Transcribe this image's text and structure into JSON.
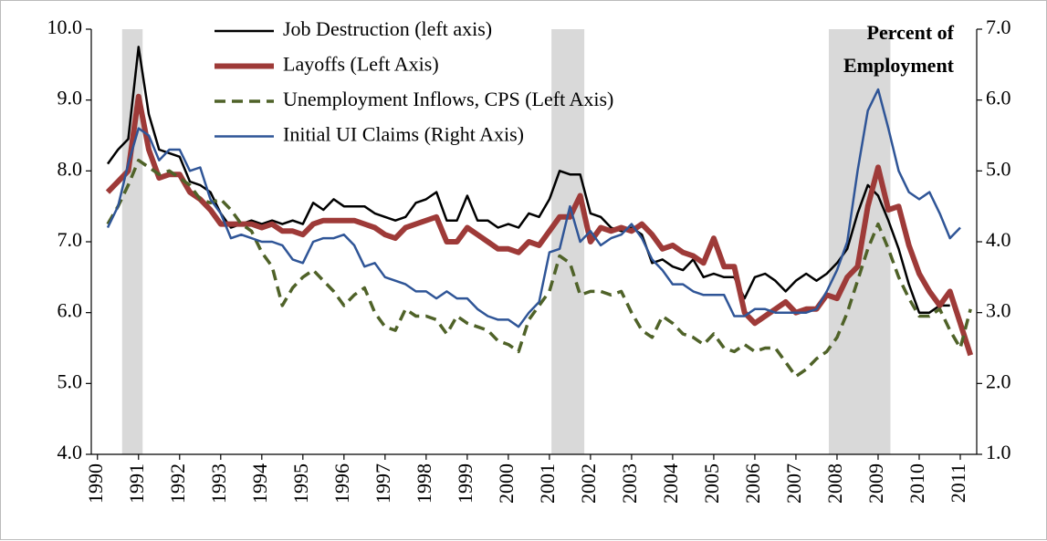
{
  "chart_data": {
    "type": "line",
    "annotation": "Percent of\nEmployment",
    "x": [
      1990.25,
      1990.5,
      1990.75,
      1991,
      1991.25,
      1991.5,
      1991.75,
      1992,
      1992.25,
      1992.5,
      1992.75,
      1993,
      1993.25,
      1993.5,
      1993.75,
      1994,
      1994.25,
      1994.5,
      1994.75,
      1995,
      1995.25,
      1995.5,
      1995.75,
      1996,
      1996.25,
      1996.5,
      1996.75,
      1997,
      1997.25,
      1997.5,
      1997.75,
      1998,
      1998.25,
      1998.5,
      1998.75,
      1999,
      1999.25,
      1999.5,
      1999.75,
      2000,
      2000.25,
      2000.5,
      2000.75,
      2001,
      2001.25,
      2001.5,
      2001.75,
      2002,
      2002.25,
      2002.5,
      2002.75,
      2003,
      2003.25,
      2003.5,
      2003.75,
      2004,
      2004.25,
      2004.5,
      2004.75,
      2005,
      2005.25,
      2005.5,
      2005.75,
      2006,
      2006.25,
      2006.5,
      2006.75,
      2007,
      2007.25,
      2007.5,
      2007.75,
      2008,
      2008.25,
      2008.5,
      2008.75,
      2009,
      2009.25,
      2009.5,
      2009.75,
      2010,
      2010.25,
      2010.5,
      2010.75,
      2011,
      2011.25
    ],
    "series": [
      {
        "name": "Job Destruction (left axis)",
        "color": "#000000",
        "width": 2.5,
        "dashed": false,
        "axis": "y",
        "values": [
          8.1,
          8.3,
          8.45,
          9.75,
          8.8,
          8.3,
          8.25,
          8.2,
          7.85,
          7.8,
          7.7,
          7.4,
          7.2,
          7.25,
          7.3,
          7.25,
          7.3,
          7.25,
          7.3,
          7.25,
          7.55,
          7.45,
          7.6,
          7.5,
          7.5,
          7.5,
          7.4,
          7.35,
          7.3,
          7.35,
          7.55,
          7.6,
          7.7,
          7.3,
          7.3,
          7.65,
          7.3,
          7.3,
          7.2,
          7.25,
          7.2,
          7.4,
          7.35,
          7.6,
          8.0,
          7.95,
          7.95,
          7.4,
          7.35,
          7.2,
          7.15,
          7.2,
          7.1,
          6.7,
          6.75,
          6.65,
          6.6,
          6.75,
          6.5,
          6.55,
          6.5,
          6.5,
          6.2,
          6.5,
          6.55,
          6.45,
          6.3,
          6.45,
          6.55,
          6.45,
          6.55,
          6.7,
          6.9,
          7.4,
          7.8,
          7.65,
          7.3,
          6.9,
          6.4,
          6.0,
          6.0,
          6.1,
          6.1,
          null,
          null
        ]
      },
      {
        "name": "Layoffs (Left Axis)",
        "color": "#9e3a38",
        "width": 6,
        "dashed": false,
        "axis": "y",
        "values": [
          7.7,
          7.85,
          8.0,
          9.05,
          8.3,
          7.9,
          7.95,
          7.95,
          7.7,
          7.6,
          7.45,
          7.25,
          7.25,
          7.25,
          7.25,
          7.2,
          7.25,
          7.15,
          7.15,
          7.1,
          7.25,
          7.3,
          7.3,
          7.3,
          7.3,
          7.25,
          7.2,
          7.1,
          7.05,
          7.2,
          7.25,
          7.3,
          7.35,
          7.0,
          7.0,
          7.2,
          7.1,
          7.0,
          6.9,
          6.9,
          6.85,
          7.0,
          6.95,
          7.15,
          7.35,
          7.35,
          7.65,
          7.0,
          7.2,
          7.15,
          7.2,
          7.15,
          7.25,
          7.1,
          6.9,
          6.95,
          6.85,
          6.8,
          6.7,
          7.05,
          6.65,
          6.65,
          6.0,
          5.85,
          5.95,
          6.05,
          6.15,
          6.0,
          6.05,
          6.05,
          6.25,
          6.2,
          6.5,
          6.65,
          7.5,
          8.05,
          7.45,
          7.5,
          6.95,
          6.55,
          6.3,
          6.1,
          6.3,
          5.85,
          5.4
        ]
      },
      {
        "name": "Unemployment Inflows, CPS (Left Axis)",
        "color": "#4f6228",
        "width": 3.5,
        "dashed": true,
        "axis": "y",
        "values": [
          7.25,
          7.5,
          7.8,
          8.15,
          8.05,
          7.95,
          8.0,
          7.9,
          7.8,
          7.6,
          7.55,
          7.6,
          7.45,
          7.25,
          7.15,
          6.85,
          6.65,
          6.1,
          6.35,
          6.5,
          6.6,
          6.45,
          6.3,
          6.1,
          6.25,
          6.35,
          6.0,
          5.8,
          5.75,
          6.05,
          5.95,
          5.95,
          5.9,
          5.7,
          5.95,
          5.85,
          5.8,
          5.75,
          5.6,
          5.55,
          5.45,
          5.9,
          6.1,
          6.3,
          6.8,
          6.7,
          6.25,
          6.3,
          6.3,
          6.25,
          6.3,
          6.0,
          5.75,
          5.65,
          5.95,
          5.85,
          5.7,
          5.65,
          5.55,
          5.7,
          5.5,
          5.45,
          5.55,
          5.45,
          5.5,
          5.5,
          5.3,
          5.1,
          5.2,
          5.35,
          5.45,
          5.65,
          6.0,
          6.45,
          6.9,
          7.25,
          6.9,
          6.5,
          6.2,
          5.95,
          5.95,
          6.05,
          5.75,
          5.5,
          6.05
        ]
      },
      {
        "name": "Initial UI Claims (Right Axis)",
        "color": "#2f5597",
        "width": 2.5,
        "dashed": false,
        "axis": "y2",
        "values": [
          4.2,
          4.5,
          5.1,
          5.6,
          5.5,
          5.15,
          5.3,
          5.3,
          5.0,
          5.05,
          4.6,
          4.4,
          4.05,
          4.1,
          4.05,
          4.0,
          4.0,
          3.95,
          3.75,
          3.7,
          4.0,
          4.05,
          4.05,
          4.1,
          3.95,
          3.65,
          3.7,
          3.5,
          3.45,
          3.4,
          3.3,
          3.3,
          3.2,
          3.3,
          3.2,
          3.2,
          3.05,
          2.95,
          2.9,
          2.9,
          2.8,
          3.0,
          3.15,
          3.85,
          3.9,
          4.5,
          4.0,
          4.15,
          3.95,
          4.05,
          4.1,
          4.25,
          4.05,
          3.75,
          3.6,
          3.4,
          3.4,
          3.3,
          3.25,
          3.25,
          3.25,
          2.95,
          2.95,
          3.05,
          3.05,
          3.0,
          3.0,
          3.0,
          3.0,
          3.05,
          3.3,
          3.6,
          4.0,
          5.0,
          5.85,
          6.15,
          5.6,
          5.0,
          4.7,
          4.6,
          4.7,
          4.4,
          4.05,
          4.2,
          null
        ]
      }
    ],
    "shaded_periods": [
      [
        1990.6,
        1991.1
      ],
      [
        2001.05,
        2001.85
      ],
      [
        2007.8,
        2009.3
      ]
    ],
    "shade_color": "#d9d9d9",
    "xlim": [
      1989.85,
      2011.4
    ],
    "xticks": [
      1990,
      1991,
      1992,
      1993,
      1994,
      1995,
      1996,
      1997,
      1998,
      1999,
      2000,
      2001,
      2002,
      2003,
      2004,
      2005,
      2006,
      2007,
      2008,
      2009,
      2010,
      2011
    ],
    "ylim": [
      4,
      10
    ],
    "yticks": [
      {
        "value": 4,
        "label": "4.0"
      },
      {
        "value": 5,
        "label": "5.0"
      },
      {
        "value": 6,
        "label": "6.0"
      },
      {
        "value": 7,
        "label": "7.0"
      },
      {
        "value": 8,
        "label": "8.0"
      },
      {
        "value": 9,
        "label": "9.0"
      },
      {
        "value": 10,
        "label": "10.0"
      }
    ],
    "y2lim": [
      1,
      7
    ],
    "y2ticks": [
      {
        "value": 1,
        "label": "1.0"
      },
      {
        "value": 2,
        "label": "2.0"
      },
      {
        "value": 3,
        "label": "3.0"
      },
      {
        "value": 4,
        "label": "4.0"
      },
      {
        "value": 5,
        "label": "5.0"
      },
      {
        "value": 6,
        "label": "6.0"
      },
      {
        "value": 7,
        "label": "7.0"
      }
    ]
  }
}
